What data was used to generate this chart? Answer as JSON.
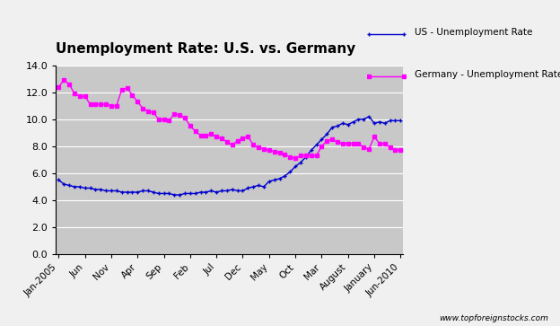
{
  "title": "Unemployment Rate: U.S. vs. Germany",
  "title_fontsize": 11,
  "plot_bg_color": "#c8c8c8",
  "fig_bg_color": "#f0f0f0",
  "us_color": "#0000CD",
  "germany_color": "#FF00FF",
  "us_label": "US - Unemployment Rate",
  "germany_label": "Germany - Unemployment Rate",
  "ylim": [
    0.0,
    14.0
  ],
  "yticks": [
    0.0,
    2.0,
    4.0,
    6.0,
    8.0,
    10.0,
    12.0,
    14.0
  ],
  "watermark": "www.topforeignstocks.com",
  "xtick_labels": [
    "Jan-2005",
    "Jun",
    "Nov",
    "Apr",
    "Sep",
    "Feb",
    "Jul",
    "Dec",
    "May",
    "Oct",
    "Mar",
    "August",
    "January",
    "Jun-2010"
  ],
  "us_data": [
    5.5,
    5.2,
    5.1,
    5.0,
    5.0,
    4.9,
    4.9,
    4.8,
    4.8,
    4.7,
    4.7,
    4.7,
    4.6,
    4.6,
    4.6,
    4.6,
    4.7,
    4.7,
    4.6,
    4.5,
    4.5,
    4.5,
    4.4,
    4.4,
    4.5,
    4.5,
    4.5,
    4.6,
    4.6,
    4.7,
    4.6,
    4.7,
    4.7,
    4.8,
    4.7,
    4.7,
    4.9,
    5.0,
    5.1,
    5.0,
    5.4,
    5.5,
    5.6,
    5.8,
    6.1,
    6.5,
    6.8,
    7.2,
    7.7,
    8.1,
    8.5,
    8.9,
    9.4,
    9.5,
    9.7,
    9.6,
    9.8,
    10.0,
    10.0,
    10.2,
    9.7,
    9.8,
    9.7,
    9.9,
    9.9,
    9.9
  ],
  "germany_data": [
    12.4,
    12.9,
    12.6,
    11.9,
    11.7,
    11.7,
    11.1,
    11.1,
    11.1,
    11.1,
    11.0,
    11.0,
    12.2,
    12.3,
    11.8,
    11.3,
    10.8,
    10.6,
    10.5,
    10.0,
    10.0,
    9.9,
    10.4,
    10.3,
    10.1,
    9.5,
    9.1,
    8.8,
    8.8,
    8.9,
    8.7,
    8.6,
    8.3,
    8.1,
    8.4,
    8.6,
    8.7,
    8.1,
    7.9,
    7.8,
    7.7,
    7.6,
    7.5,
    7.4,
    7.2,
    7.1,
    7.3,
    7.3,
    7.3,
    7.3,
    8.0,
    8.4,
    8.5,
    8.3,
    8.2,
    8.2,
    8.2,
    8.2,
    7.9,
    7.8,
    8.7,
    8.2,
    8.2,
    7.9,
    7.7,
    7.7
  ]
}
